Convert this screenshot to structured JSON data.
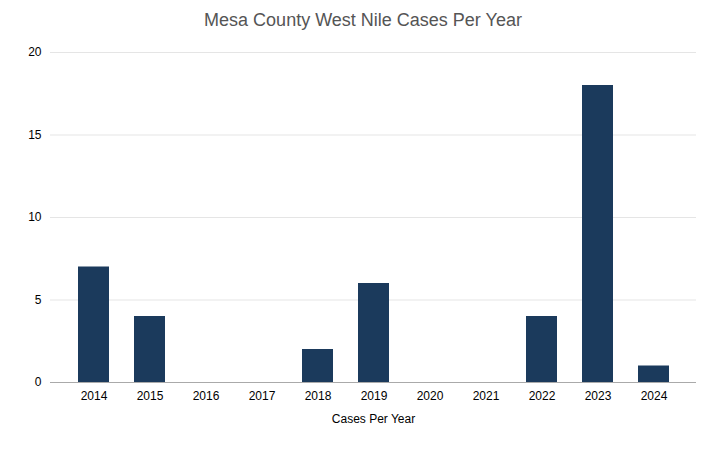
{
  "chart_data": {
    "type": "bar",
    "title": "Mesa County West Nile Cases Per Year",
    "xlabel": "Cases Per Year",
    "categories": [
      "2014",
      "2015",
      "2016",
      "2017",
      "2018",
      "2019",
      "2020",
      "2021",
      "2022",
      "2023",
      "2024"
    ],
    "values": [
      7,
      4,
      0,
      0,
      2,
      6,
      0,
      0,
      4,
      18,
      1
    ],
    "color": "#1b3a5c",
    "ylim": [
      0,
      20
    ],
    "yticks": [
      0,
      5,
      10,
      15,
      20
    ],
    "grid": true
  }
}
